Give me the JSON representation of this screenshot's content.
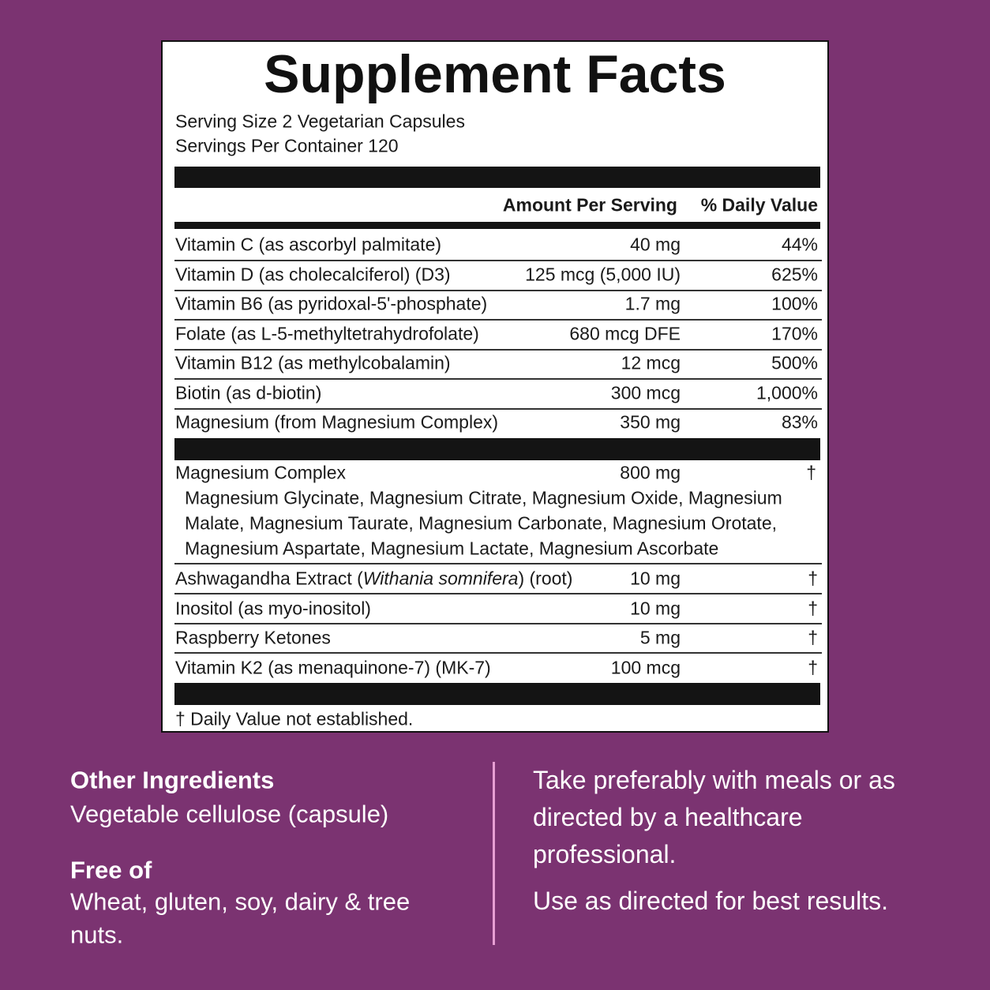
{
  "label": {
    "title": "Supplement Facts",
    "serving_size": "Serving Size 2 Vegetarian Capsules",
    "servings_per_container": "Servings Per Container 120",
    "headers": {
      "amount": "Amount Per Serving",
      "daily_value": "% Daily Value"
    },
    "vitamins": [
      {
        "name": "Vitamin C (as ascorbyl palmitate)",
        "amount": "40 mg",
        "dv": "44%"
      },
      {
        "name": "Vitamin D (as cholecalciferol) (D3)",
        "amount": "125 mcg (5,000 IU)",
        "dv": "625%"
      },
      {
        "name": "Vitamin B6 (as pyridoxal-5'-phosphate)",
        "amount": "1.7 mg",
        "dv": "100%"
      },
      {
        "name": "Folate (as L-5-methyltetrahydrofolate)",
        "amount": "680 mcg DFE",
        "dv": "170%"
      },
      {
        "name": "Vitamin B12 (as methylcobalamin)",
        "amount": "12 mcg",
        "dv": "500%"
      },
      {
        "name": "Biotin (as d-biotin)",
        "amount": "300 mcg",
        "dv": "1,000%"
      },
      {
        "name": "Magnesium (from Magnesium Complex)",
        "amount": "350 mg",
        "dv": "83%"
      }
    ],
    "complex": {
      "name": "Magnesium Complex",
      "amount": "800 mg",
      "dv": "†",
      "lines": [
        "Magnesium Glycinate, Magnesium Citrate, Magnesium Oxide, Magnesium",
        "Malate, Magnesium Taurate, Magnesium Carbonate, Magnesium Orotate,",
        "Magnesium Aspartate, Magnesium Lactate, Magnesium Ascorbate"
      ]
    },
    "others": [
      {
        "name_parts": [
          "Ashwagandha Extract (",
          "Withania somnifera",
          ") (root)"
        ],
        "amount": "10 mg",
        "dv": "†"
      },
      {
        "name_parts": [
          "Inositol (as myo-inositol)"
        ],
        "amount": "10 mg",
        "dv": "†"
      },
      {
        "name_parts": [
          "Raspberry Ketones"
        ],
        "amount": "5 mg",
        "dv": "†"
      },
      {
        "name_parts": [
          "Vitamin K2 (as menaquinone-7) (MK-7)"
        ],
        "amount": "100 mcg",
        "dv": "†"
      }
    ],
    "footnote": "† Daily Value not established."
  },
  "other_ingredients": {
    "heading": "Other Ingredients",
    "text": "Vegetable cellulose (capsule)"
  },
  "free_of": {
    "heading": "Free of",
    "lines": [
      "Wheat, gluten, soy, dairy & tree",
      "nuts."
    ]
  },
  "directions": {
    "lines": [
      "Take preferably with meals or as",
      "directed by a healthcare",
      "professional."
    ],
    "note": "Use as directed for best results."
  }
}
